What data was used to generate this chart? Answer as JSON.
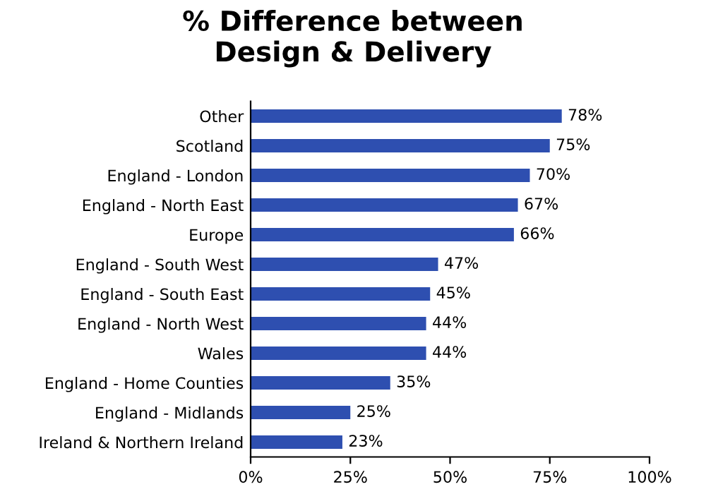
{
  "chart_data": {
    "type": "bar",
    "orientation": "horizontal",
    "title": "% Difference between\nDesign & Delivery",
    "categories": [
      "Other",
      "Scotland",
      "England - London",
      "England - North East",
      "Europe",
      "England - South West",
      "England - South East",
      "England - North West",
      "Wales",
      "England - Home Counties",
      "England - Midlands",
      "Ireland & Northern Ireland"
    ],
    "values": [
      78,
      75,
      70,
      67,
      66,
      47,
      45,
      44,
      44,
      35,
      25,
      23
    ],
    "value_labels": [
      "78%",
      "75%",
      "70%",
      "67%",
      "66%",
      "47%",
      "45%",
      "44%",
      "44%",
      "35%",
      "25%",
      "23%"
    ],
    "color": "#2e4fb0",
    "xlim": [
      0,
      100
    ],
    "xticks": [
      {
        "value": 0,
        "label": "0%"
      },
      {
        "value": 25,
        "label": "25%"
      },
      {
        "value": 50,
        "label": "50%"
      },
      {
        "value": 75,
        "label": "75%"
      },
      {
        "value": 100,
        "label": "100%"
      }
    ],
    "grid": false
  }
}
